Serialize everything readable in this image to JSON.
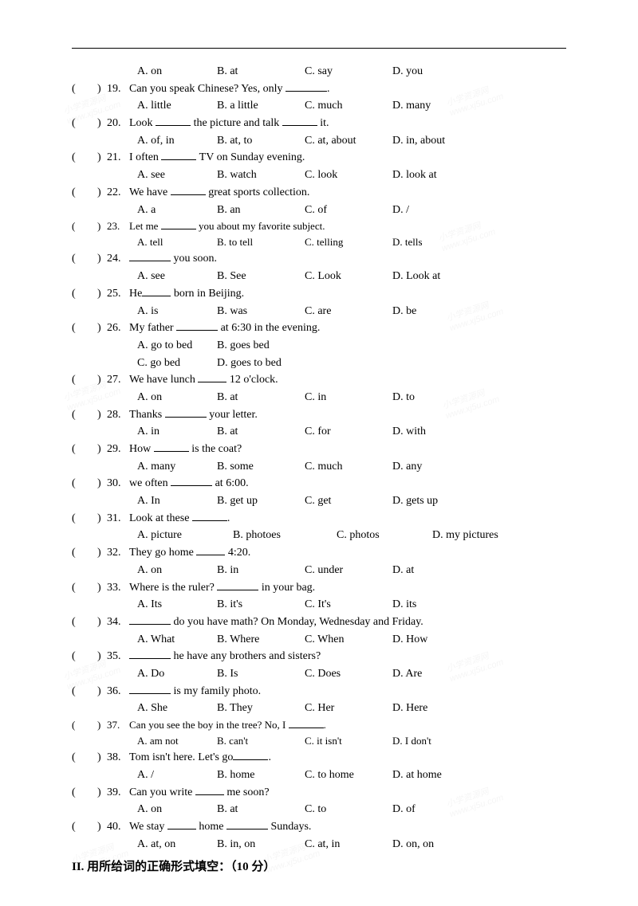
{
  "top_options": {
    "a": "A. on",
    "b": "B. at",
    "c": "C. say",
    "d": "D. you"
  },
  "questions": [
    {
      "n": "19.",
      "t": "Can you speak Chinese? Yes, only ______.",
      "opts": [
        "A. little",
        "B. a little",
        "C. much",
        "D. many"
      ]
    },
    {
      "n": "20.",
      "t": "Look _____ the picture and talk _____ it.",
      "opts": [
        "A. of, in",
        "B. at, to",
        "C. at, about",
        "D. in, about"
      ]
    },
    {
      "n": "21.",
      "t": "I often _____ TV on Sunday evening.",
      "opts": [
        "A. see",
        "B. watch",
        "C. look",
        "D. look at"
      ]
    },
    {
      "n": "22.",
      "t": "We have _____ great sports collection.",
      "opts": [
        "A. a",
        "B. an",
        "C. of",
        "D. /"
      ]
    },
    {
      "n": "23.",
      "t": "Let me _____ you about my favorite subject.",
      "smaller": true,
      "opts": [
        "A. tell",
        "B. to tell",
        "C. telling",
        "D. tells"
      ]
    },
    {
      "n": "24.",
      "t": "______ you soon.",
      "opts": [
        "A. see",
        "B. See",
        "C. Look",
        "D. Look at"
      ]
    },
    {
      "n": "25.",
      "t": "He____ born in Beijing.",
      "opts": [
        "A. is",
        "B. was",
        "C. are",
        "D. be"
      ]
    },
    {
      "n": "26.",
      "t": "My father ______ at 6:30 in the evening.",
      "opts": [
        "A. go to bed",
        "B. goes bed",
        "",
        ""
      ],
      "opts2": [
        "C. go bed",
        "D. goes to bed",
        "",
        ""
      ]
    },
    {
      "n": "27.",
      "t": "We have lunch ____ 12 o'clock.",
      "opts": [
        "A. on",
        "B. at",
        "C. in",
        "D. to"
      ]
    },
    {
      "n": "28.",
      "t": "Thanks ______ your letter.",
      "opts": [
        "A. in",
        "B. at",
        "C. for",
        "D. with"
      ]
    },
    {
      "n": "29.",
      "t": "How _____ is the coat?",
      "opts": [
        "A. many",
        "B. some",
        "C. much",
        "D. any"
      ]
    },
    {
      "n": "30.",
      "t": "we often ______ at 6:00.",
      "opts": [
        "A. In",
        "B. get up",
        "C. get",
        "D. gets up"
      ]
    },
    {
      "n": "31.",
      "t": "Look at these _____.",
      "opts": [
        "A. picture",
        "B. photoes",
        "C. photos",
        "D. my pictures"
      ],
      "wide": true
    },
    {
      "n": "32.",
      "t": "They go home ____ 4:20.",
      "opts": [
        "A. on",
        "B. in",
        "C. under",
        "D. at"
      ]
    },
    {
      "n": "33.",
      "t": "Where is the ruler? ______ in your bag.",
      "opts": [
        "A. Its",
        "B. it's",
        "C. It's",
        "D. its"
      ]
    },
    {
      "n": "34.",
      "t": "______ do you have math? On Monday, Wednesday and Friday.",
      "opts": [
        "A. What",
        "B. Where",
        "C. When",
        "D. How"
      ]
    },
    {
      "n": "35.",
      "t": "______ he have any brothers and sisters?",
      "opts": [
        "A. Do",
        "B. Is",
        "C. Does",
        "D. Are"
      ]
    },
    {
      "n": "36.",
      "t": "______ is my family photo.",
      "opts": [
        "A. She",
        "B. They",
        "C. Her",
        "D. Here"
      ]
    },
    {
      "n": "37.",
      "t": "Can you see the boy in the tree? No, I _____.",
      "smaller": true,
      "opts": [
        "A. am not",
        "B. can't",
        "C. it isn't",
        "D. I don't"
      ]
    },
    {
      "n": "38.",
      "t": "Tom isn't here. Let's go_____.",
      "opts": [
        "A. /",
        "B. home",
        "C. to home",
        "D. at home"
      ]
    },
    {
      "n": "39.",
      "t": "Can you write ____ me soon?",
      "opts": [
        "A. on",
        "B. at",
        "C. to",
        "D. of"
      ]
    },
    {
      "n": "40.",
      "t": "We stay ____ home ______ Sundays.",
      "opts": [
        "A. at, on",
        "B. in, on",
        "C. at, in",
        "D. on, on"
      ]
    }
  ],
  "section2": "II.  用所给词的正确形式填空：（10 分）",
  "watermark_text": "小学资源网\nwww.xj5u.com"
}
